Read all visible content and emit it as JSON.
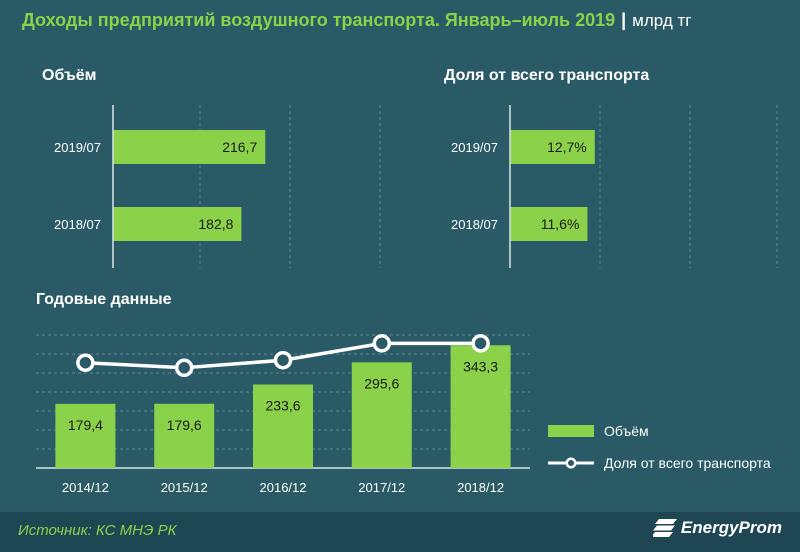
{
  "header": {
    "title": "Доходы предприятий воздушного транспорта. Январь–июль 2019",
    "separator": "|",
    "unit": "млрд тг"
  },
  "sections": {
    "volume": "Объём",
    "share": "Доля от всего транспорта",
    "annual": "Годовые данные"
  },
  "legend": {
    "bars": "Объём",
    "line": "Доля от всего транспорта"
  },
  "footer": {
    "source": "Источник: КС МНЭ РК",
    "logo": "EnergyProm"
  },
  "colors": {
    "background": "#2a5a66",
    "bar": "#8cd14a",
    "line": "#ffffff",
    "accent": "#8cd14a"
  },
  "chart_data": [
    {
      "type": "bar",
      "orientation": "horizontal",
      "title": "Объём",
      "categories": [
        "2019/07",
        "2018/07"
      ],
      "values": [
        216.7,
        182.8
      ],
      "value_labels": [
        "216,7",
        "182,8"
      ],
      "xlim": [
        0,
        380
      ]
    },
    {
      "type": "bar",
      "orientation": "horizontal",
      "title": "Доля от всего транспорта",
      "categories": [
        "2019/07",
        "2018/07"
      ],
      "values": [
        12.7,
        11.6
      ],
      "value_labels": [
        "12,7%",
        "11,6%"
      ],
      "xlim": [
        0,
        40
      ]
    },
    {
      "type": "bar",
      "title": "Годовые данные",
      "categories": [
        "2014/12",
        "2015/12",
        "2016/12",
        "2017/12",
        "2018/12"
      ],
      "series": [
        {
          "name": "Объём",
          "type": "bar",
          "values": [
            179.4,
            179.6,
            233.6,
            295.6,
            343.3
          ],
          "value_labels": [
            "179,4",
            "179,6",
            "233,6",
            "295,6",
            "343,3"
          ]
        },
        {
          "name": "Доля от всего транспорта",
          "type": "line",
          "values": [
            12.5,
            11.9,
            12.8,
            14.8,
            14.8
          ]
        }
      ],
      "ylim": [
        0,
        400
      ],
      "y2lim": [
        0,
        18
      ],
      "grid": true,
      "legend_position": "right"
    }
  ]
}
